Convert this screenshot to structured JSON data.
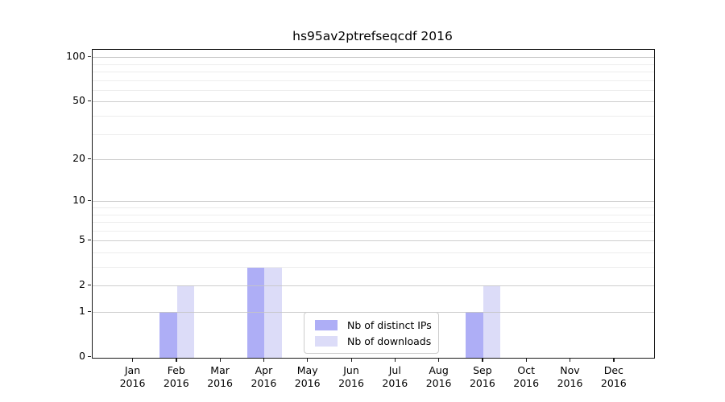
{
  "chart_data": {
    "type": "bar",
    "title": "hs95av2ptrefseqcdf 2016",
    "categories": [
      "Jan 2016",
      "Feb 2016",
      "Mar 2016",
      "Apr 2016",
      "May 2016",
      "Jun 2016",
      "Jul 2016",
      "Aug 2016",
      "Sep 2016",
      "Oct 2016",
      "Nov 2016",
      "Dec 2016"
    ],
    "series": [
      {
        "name": "Nb of distinct IPs",
        "color": "#aeaef6",
        "values": [
          0,
          1,
          0,
          3,
          0,
          0,
          0,
          0,
          1,
          0,
          0,
          0
        ]
      },
      {
        "name": "Nb of downloads",
        "color": "#dcdcf8",
        "values": [
          0,
          2,
          0,
          3,
          0,
          0,
          0,
          0,
          2,
          0,
          0,
          0
        ]
      }
    ],
    "xlabel": "",
    "ylabel": "",
    "yscale": "log1p",
    "ylim": [
      0,
      112
    ],
    "y_major_ticks": [
      0,
      1,
      2,
      5,
      10,
      20,
      50,
      100
    ],
    "y_minor_ticks": [
      3,
      4,
      6,
      7,
      8,
      9,
      30,
      40,
      60,
      70,
      80,
      90
    ],
    "grid": "on",
    "grid_above_bars": true,
    "legend_position": "lower center, inside plot"
  },
  "colors": {
    "background": "#ffffff",
    "spine": "#1a1a1a",
    "grid_major": "#c6c6c6",
    "grid_minor": "#ededed",
    "series_1": "#aeaef6",
    "series_2": "#dcdcf8"
  }
}
